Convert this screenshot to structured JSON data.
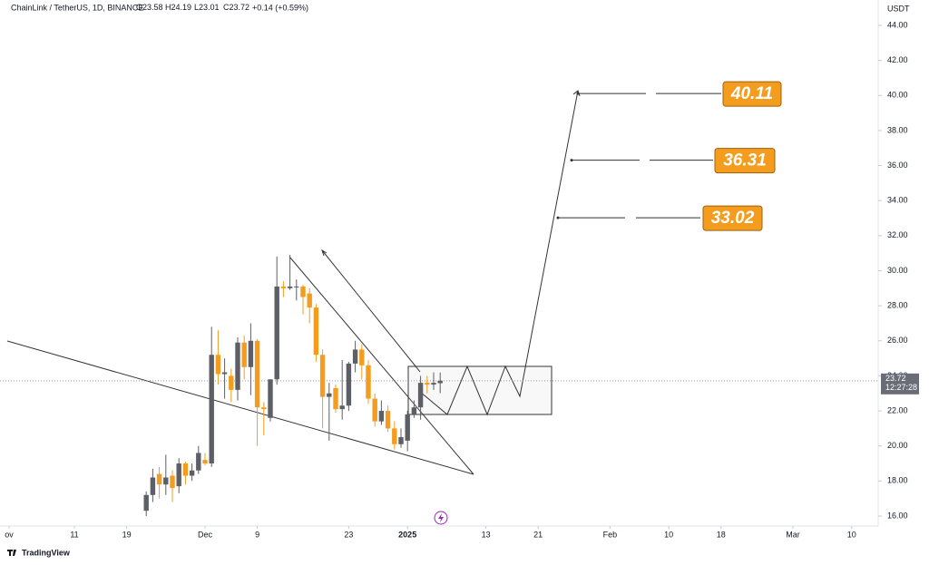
{
  "chart_data": {
    "type": "candlestick",
    "title": "ChainLink / TetherUS, 1D, BINANCE",
    "quote": [
      {
        "label": "O",
        "value": 23.58
      },
      {
        "label": "H",
        "value": 24.19
      },
      {
        "label": "L",
        "value": 23.01
      },
      {
        "label": "C",
        "value": 23.72
      }
    ],
    "change": "+0.14 (+0.59%)",
    "currency": "USDT",
    "last_price": 23.72,
    "countdown": "12:27:28",
    "watermark": "TradingView",
    "up_color": "#5d5f66",
    "down_color": "#f39c1e",
    "target_color": "#f39c1e",
    "targets": [
      40.11,
      36.31,
      33.02
    ],
    "x": [
      21,
      22,
      23,
      24,
      25,
      26,
      27,
      28,
      29,
      30,
      31,
      32,
      33,
      34,
      35,
      36,
      37,
      38,
      39,
      40,
      41,
      42,
      43,
      44,
      45,
      46,
      47,
      48,
      49,
      50,
      51,
      52,
      53,
      54,
      55,
      56,
      57,
      58,
      59,
      60,
      61,
      62,
      63,
      64,
      65,
      66
    ],
    "open": [
      16.3,
      17.2,
      18.4,
      17.8,
      18.3,
      17.7,
      19.0,
      18.3,
      18.6,
      19.2,
      19.0,
      25.2,
      24.1,
      24.0,
      23.2,
      25.9,
      24.5,
      26.0,
      22.2,
      21.6,
      23.8,
      29.1,
      29.0,
      29.1,
      29.1,
      28.7,
      27.9,
      25.2,
      22.8,
      23.3,
      22.1,
      22.3,
      24.7,
      25.5,
      24.6,
      22.7,
      21.4,
      22.0,
      21.0,
      20.1,
      20.3,
      21.8,
      22.2,
      23.6,
      23.5,
      23.58
    ],
    "high": [
      17.4,
      18.7,
      18.8,
      19.5,
      18.6,
      19.3,
      19.1,
      19.0,
      20.0,
      19.6,
      26.8,
      26.6,
      25.0,
      24.4,
      26.2,
      26.3,
      27.0,
      26.1,
      22.5,
      23.8,
      30.8,
      29.4,
      30.9,
      29.5,
      29.2,
      29.0,
      28.1,
      25.5,
      23.6,
      23.5,
      24.9,
      24.8,
      26.0,
      25.8,
      24.9,
      23.0,
      22.6,
      22.3,
      21.4,
      21.0,
      22.0,
      22.6,
      24.0,
      24.0,
      24.2,
      24.19
    ],
    "low": [
      16.0,
      16.8,
      17.0,
      17.2,
      16.8,
      17.3,
      17.8,
      18.0,
      18.4,
      18.9,
      18.8,
      23.5,
      22.7,
      22.5,
      22.6,
      23.8,
      22.9,
      20.0,
      20.6,
      21.4,
      23.5,
      28.5,
      28.9,
      28.3,
      27.5,
      27.0,
      24.8,
      21.0,
      20.3,
      21.9,
      21.5,
      22.0,
      24.2,
      23.8,
      22.4,
      21.1,
      21.2,
      20.8,
      19.8,
      19.9,
      19.7,
      21.6,
      21.5,
      23.0,
      23.2,
      23.01
    ],
    "close": [
      17.2,
      18.2,
      17.8,
      18.2,
      17.6,
      19.0,
      18.3,
      18.6,
      19.6,
      19.0,
      25.2,
      24.1,
      24.2,
      23.2,
      25.9,
      24.5,
      26.0,
      22.2,
      22.1,
      23.8,
      29.1,
      29.0,
      29.1,
      29.1,
      28.5,
      27.9,
      25.2,
      22.8,
      23.0,
      22.1,
      22.3,
      24.7,
      25.5,
      24.6,
      22.7,
      21.4,
      22.0,
      21.0,
      20.1,
      20.5,
      21.8,
      22.2,
      23.6,
      23.5,
      23.6,
      23.72
    ],
    "xlim": [
      -1.39,
      133.06
    ],
    "xticks": [
      {
        "value": 0,
        "label": "ov"
      },
      {
        "value": 10,
        "label": "11"
      },
      {
        "value": 18,
        "label": "19"
      },
      {
        "value": 30,
        "label": "Dec"
      },
      {
        "value": 38,
        "label": "9"
      },
      {
        "value": 52,
        "label": "23"
      },
      {
        "value": 61,
        "label": "2025"
      },
      {
        "value": 73,
        "label": "13"
      },
      {
        "value": 81,
        "label": "21"
      },
      {
        "value": 92,
        "label": "Feb"
      },
      {
        "value": 101,
        "label": "10"
      },
      {
        "value": 109,
        "label": "18"
      },
      {
        "value": 120,
        "label": "Mar"
      },
      {
        "value": 129,
        "label": "10"
      }
    ],
    "ylim": [
      15.43,
      45.45
    ],
    "yticks": [
      {
        "value": 16,
        "label": "16.00"
      },
      {
        "value": 18,
        "label": "18.00"
      },
      {
        "value": 20,
        "label": "20.00"
      },
      {
        "value": 22,
        "label": "22.00"
      },
      {
        "value": 24,
        "label": "24.00"
      },
      {
        "value": 26,
        "label": "26.00"
      },
      {
        "value": 28,
        "label": "28.00"
      },
      {
        "value": 30,
        "label": "30.00"
      },
      {
        "value": 32,
        "label": "32.00"
      },
      {
        "value": 34,
        "label": "34.00"
      },
      {
        "value": 36,
        "label": "36.00"
      },
      {
        "value": 38,
        "label": "38.00"
      },
      {
        "value": 40,
        "label": "40.00"
      },
      {
        "value": 42,
        "label": "42.00"
      },
      {
        "value": 44,
        "label": "44.00"
      }
    ]
  }
}
